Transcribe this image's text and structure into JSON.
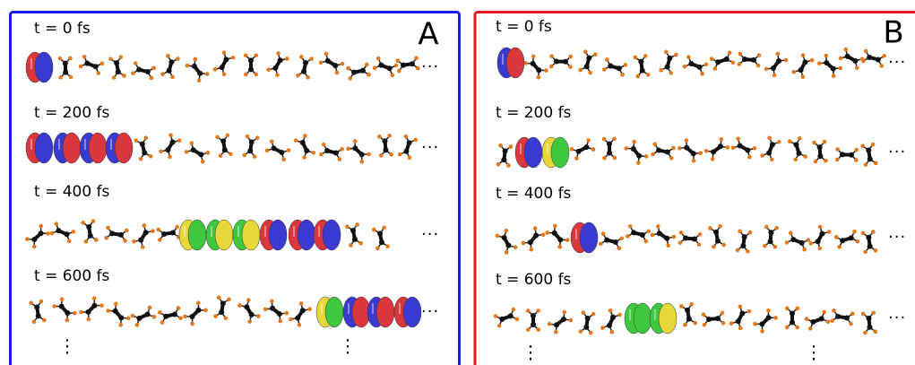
{
  "panels": [
    {
      "label": "A",
      "rows": [
        {
          "time": "t = 0 fs",
          "more": "···"
        },
        {
          "time": "t = 200 fs",
          "more": "···"
        },
        {
          "time": "t = 400 fs",
          "more": "···"
        },
        {
          "time": "t = 600 fs",
          "more": "···"
        }
      ],
      "continued": [
        "⋮",
        "⋮"
      ]
    },
    {
      "label": "B",
      "rows": [
        {
          "time": "t = 0 fs",
          "more": "···"
        },
        {
          "time": "t = 200 fs",
          "more": "···"
        },
        {
          "time": "t = 400 fs",
          "more": "···"
        },
        {
          "time": "t = 600 fs",
          "more": "···"
        }
      ],
      "continued": [
        "⋮",
        "⋮"
      ]
    }
  ]
}
